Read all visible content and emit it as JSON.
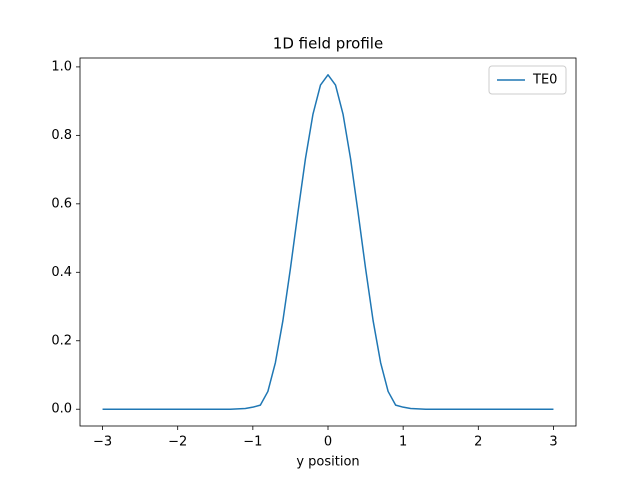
{
  "chart_data": {
    "type": "line",
    "title": "1D field profile",
    "xlabel": "y position",
    "x": [
      -3.0,
      -2.9,
      -2.8,
      -2.7,
      -2.6,
      -2.5,
      -2.4,
      -2.3,
      -2.2,
      -2.1,
      -2.0,
      -1.9,
      -1.8,
      -1.7,
      -1.6,
      -1.5,
      -1.4,
      -1.3,
      -1.2,
      -1.1,
      -1.0,
      -0.9,
      -0.8,
      -0.7,
      -0.6,
      -0.5,
      -0.4,
      -0.3,
      -0.2,
      -0.1,
      0.0,
      0.1,
      0.2,
      0.3,
      0.4,
      0.5,
      0.6,
      0.7,
      0.8,
      0.9,
      1.0,
      1.1,
      1.2,
      1.3,
      1.4,
      1.5,
      1.6,
      1.7,
      1.8,
      1.9,
      2.0,
      2.1,
      2.2,
      2.3,
      2.4,
      2.5,
      2.6,
      2.7,
      2.8,
      2.9,
      3.0
    ],
    "series": [
      {
        "name": "TE0",
        "color": "#1f77b4",
        "values": [
          0,
          0,
          0,
          0,
          0,
          0,
          0,
          0,
          0,
          0,
          0,
          0,
          0,
          0,
          0,
          0,
          0,
          0,
          0.001,
          0.002,
          0.006,
          0.012,
          0.052,
          0.136,
          0.259,
          0.411,
          0.575,
          0.732,
          0.862,
          0.947,
          0.977,
          0.947,
          0.862,
          0.732,
          0.575,
          0.411,
          0.259,
          0.136,
          0.052,
          0.012,
          0.006,
          0.002,
          0.001,
          0,
          0,
          0,
          0,
          0,
          0,
          0,
          0,
          0,
          0,
          0,
          0,
          0,
          0,
          0,
          0,
          0,
          0
        ]
      }
    ],
    "xlim": [
      -3.3,
      3.3
    ],
    "xticks": [
      {
        "value": -3,
        "label": "−3"
      },
      {
        "value": -2,
        "label": "−2"
      },
      {
        "value": -1,
        "label": "−1"
      },
      0,
      1,
      2,
      3
    ],
    "ylim": [
      -0.049,
      1.026
    ],
    "yticks": [
      {
        "value": 0,
        "label": "0.0"
      },
      {
        "value": 0.2,
        "label": "0.2"
      },
      {
        "value": 0.4,
        "label": "0.4"
      },
      {
        "value": 0.6,
        "label": "0.6"
      },
      {
        "value": 0.8,
        "label": "0.8"
      },
      {
        "value": 1.0,
        "label": "1.0"
      }
    ],
    "legend": "upper right"
  }
}
